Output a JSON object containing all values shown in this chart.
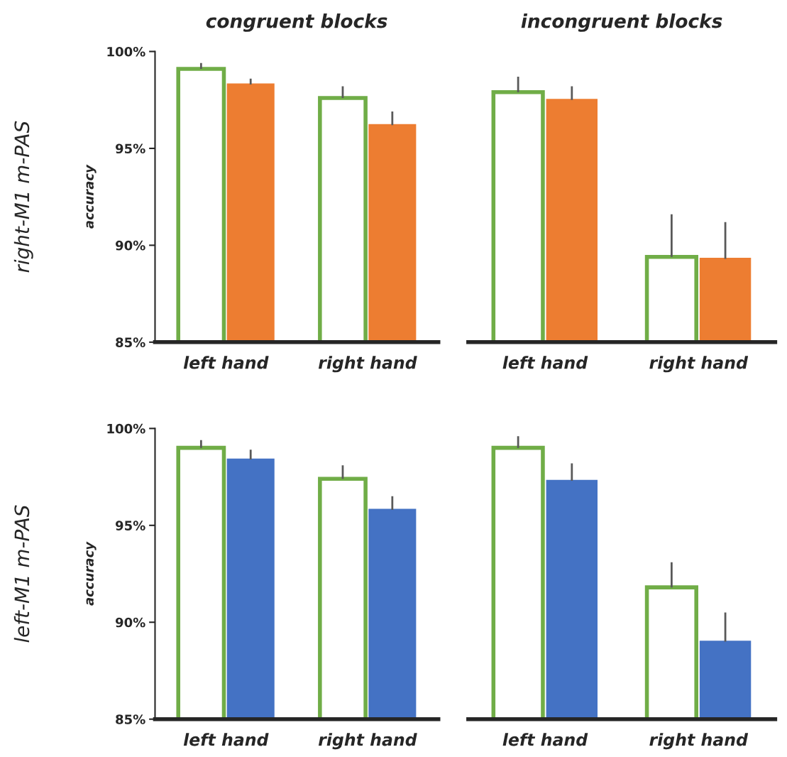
{
  "chart_data": [
    {
      "type": "bar",
      "title": "congruent blocks",
      "ylabel": "accuracy",
      "annotations": [
        "right-M1 m-PAS"
      ],
      "categories": [
        "left hand",
        "right hand"
      ],
      "series": [
        {
          "color": "#70ad47",
          "values": [
            99.1,
            97.6
          ],
          "errors": [
            [
              99.1,
              99.4
            ],
            [
              97.6,
              98.2
            ]
          ]
        },
        {
          "color": "#ed7d31",
          "values": [
            98.3,
            96.2
          ],
          "errors": [
            [
              98.3,
              98.6
            ],
            [
              96.2,
              96.9
            ]
          ]
        }
      ],
      "ylim": [
        85,
        100
      ],
      "yticks": [
        {
          "value": 85,
          "label": "85%"
        },
        {
          "value": 90,
          "label": "90%"
        },
        {
          "value": 95,
          "label": "95%"
        },
        {
          "value": 100,
          "label": "100%"
        }
      ],
      "grid": false,
      "legend": false
    },
    {
      "type": "bar",
      "title": "incongruent blocks",
      "categories": [
        "left hand",
        "right hand"
      ],
      "series": [
        {
          "color": "#70ad47",
          "values": [
            97.9,
            89.4
          ],
          "errors": [
            [
              97.9,
              98.7
            ],
            [
              89.4,
              91.6
            ]
          ]
        },
        {
          "color": "#ed7d31",
          "values": [
            97.5,
            89.3
          ],
          "errors": [
            [
              97.5,
              98.2
            ],
            [
              89.3,
              91.2
            ]
          ]
        }
      ],
      "ylim": [
        85,
        100
      ],
      "tick_labels": "x",
      "grid": false,
      "legend": false
    },
    {
      "type": "bar",
      "ylabel": "accuracy",
      "annotations": [
        "left-M1 m-PAS"
      ],
      "categories": [
        "left hand",
        "right hand"
      ],
      "series": [
        {
          "color": "#70ad47",
          "values": [
            99.0,
            97.4
          ],
          "errors": [
            [
              99.0,
              99.4
            ],
            [
              97.4,
              98.1
            ]
          ]
        },
        {
          "color": "#4472c4",
          "values": [
            98.4,
            95.8
          ],
          "errors": [
            [
              98.4,
              98.9
            ],
            [
              95.8,
              96.5
            ]
          ]
        }
      ],
      "ylim": [
        85,
        100
      ],
      "yticks": [
        {
          "value": 85,
          "label": "85%"
        },
        {
          "value": 90,
          "label": "90%"
        },
        {
          "value": 95,
          "label": "95%"
        },
        {
          "value": 100,
          "label": "100%"
        }
      ],
      "grid": false,
      "legend": false
    },
    {
      "type": "bar",
      "categories": [
        "left hand",
        "right hand"
      ],
      "series": [
        {
          "color": "#70ad47",
          "values": [
            99.0,
            91.8
          ],
          "errors": [
            [
              99.0,
              99.6
            ],
            [
              91.8,
              93.1
            ]
          ]
        },
        {
          "color": "#4472c4",
          "values": [
            97.3,
            89.0
          ],
          "errors": [
            [
              97.3,
              98.2
            ],
            [
              89.0,
              90.5
            ]
          ]
        }
      ],
      "ylim": [
        85,
        100
      ],
      "tick_labels": "x",
      "grid": false,
      "legend": false
    }
  ]
}
